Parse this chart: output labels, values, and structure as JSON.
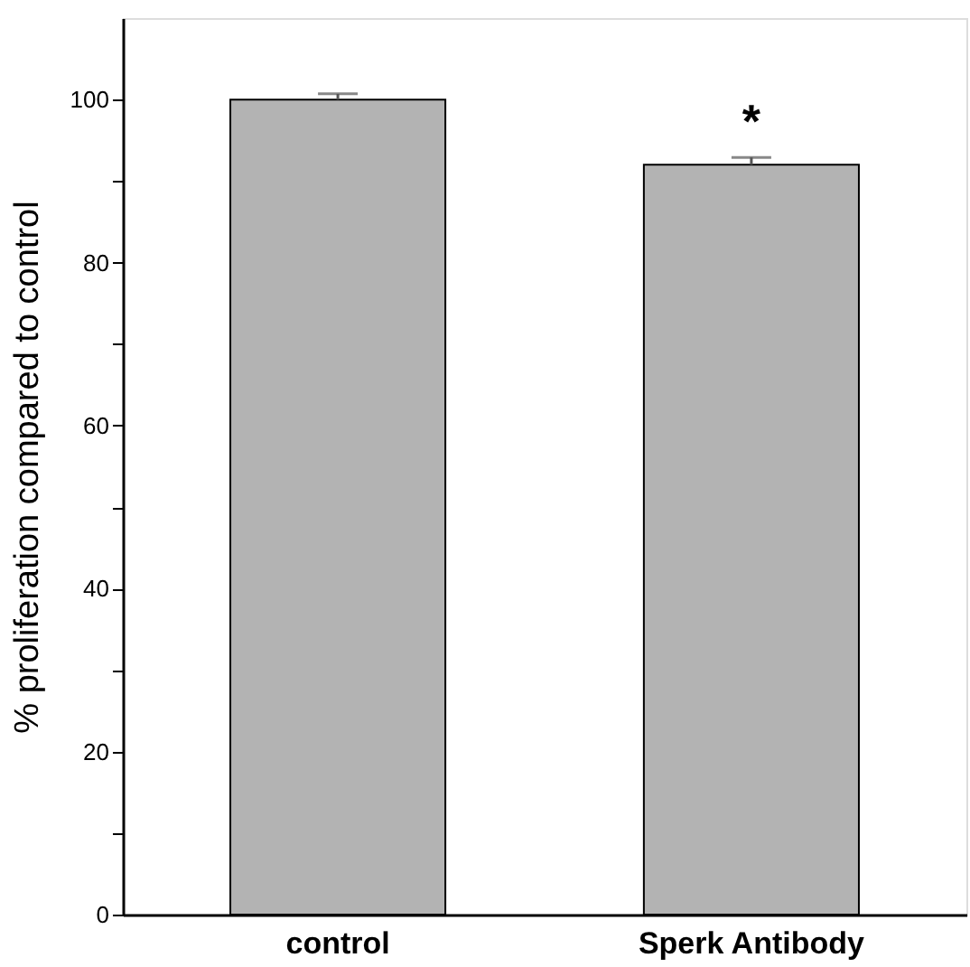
{
  "chart_data": {
    "type": "bar",
    "ylabel": "% proliferation compared to control",
    "categories": [
      "control",
      "Sperk Antibody"
    ],
    "values": [
      100,
      92
    ],
    "errors": [
      [
        100,
        100.7
      ],
      [
        92,
        92.9
      ]
    ],
    "color": "#b3b3b3",
    "ylim": [
      0,
      110
    ],
    "yticks": [
      0,
      {
        "value": 10,
        "label": null
      },
      20,
      {
        "value": 30,
        "label": null
      },
      40,
      {
        "value": 50,
        "label": null
      },
      60,
      {
        "value": 70,
        "label": null
      },
      80,
      {
        "value": 90,
        "label": null
      },
      100
    ],
    "annotations": [
      "*"
    ],
    "grid": false
  }
}
